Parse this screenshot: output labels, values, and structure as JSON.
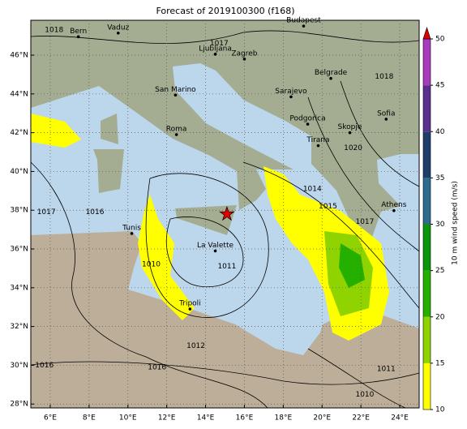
{
  "title": "Forecast of 2019100300 (f168)",
  "map": {
    "lonlim": [
      5,
      25
    ],
    "latlim": [
      27.8,
      47.8
    ],
    "lonticks": [
      {
        "value": 6,
        "label": "6°E"
      },
      {
        "value": 8,
        "label": "8°E"
      },
      {
        "value": 10,
        "label": "10°E"
      },
      {
        "value": 12,
        "label": "12°E"
      },
      {
        "value": 14,
        "label": "14°E"
      },
      {
        "value": 16,
        "label": "16°E"
      },
      {
        "value": 18,
        "label": "18°E"
      },
      {
        "value": 20,
        "label": "20°E"
      },
      {
        "value": 22,
        "label": "22°E"
      },
      {
        "value": 24,
        "label": "24°E"
      }
    ],
    "latticks": [
      {
        "value": 28,
        "label": "28°N"
      },
      {
        "value": 30,
        "label": "30°N"
      },
      {
        "value": 32,
        "label": "32°N"
      },
      {
        "value": 34,
        "label": "34°N"
      },
      {
        "value": 36,
        "label": "36°N"
      },
      {
        "value": 38,
        "label": "38°N"
      },
      {
        "value": 40,
        "label": "40°N"
      },
      {
        "value": 42,
        "label": "42°N"
      },
      {
        "value": 44,
        "label": "44°N"
      },
      {
        "value": 46,
        "label": "46°N"
      }
    ],
    "grid": true,
    "marker": {
      "lon": 15.1,
      "lat": 37.8,
      "color": "#e00000"
    },
    "cities": [
      {
        "name": "Budapest",
        "lon": 19.05,
        "lat": 47.5
      },
      {
        "name": "Vaduz",
        "lon": 9.5,
        "lat": 47.14
      },
      {
        "name": "Bern",
        "lon": 7.45,
        "lat": 46.95
      },
      {
        "name": "Ljubljana",
        "lon": 14.5,
        "lat": 46.05
      },
      {
        "name": "Zagreb",
        "lon": 16.0,
        "lat": 45.8
      },
      {
        "name": "Belgrade",
        "lon": 20.45,
        "lat": 44.8
      },
      {
        "name": "San Marino",
        "lon": 12.45,
        "lat": 43.94
      },
      {
        "name": "Sarajevo",
        "lon": 18.4,
        "lat": 43.85
      },
      {
        "name": "Roma",
        "lon": 12.5,
        "lat": 41.9
      },
      {
        "name": "Podgorica",
        "lon": 19.26,
        "lat": 42.44
      },
      {
        "name": "Skopje",
        "lon": 21.43,
        "lat": 42.0
      },
      {
        "name": "Sofia",
        "lon": 23.3,
        "lat": 42.7
      },
      {
        "name": "Tirana",
        "lon": 19.8,
        "lat": 41.33
      },
      {
        "name": "Athens",
        "lon": 23.7,
        "lat": 37.98
      },
      {
        "name": "Tunis",
        "lon": 10.2,
        "lat": 36.8
      },
      {
        "name": "La Valette",
        "lon": 14.5,
        "lat": 35.9
      },
      {
        "name": "Tripoli",
        "lon": 13.2,
        "lat": 32.9
      }
    ],
    "contour_labels": [
      {
        "value": 1018,
        "lon": 6.2,
        "lat": 47.3
      },
      {
        "value": 1017,
        "lon": 14.7,
        "lat": 46.6
      },
      {
        "value": 1018,
        "lon": 23.2,
        "lat": 44.9
      },
      {
        "value": 1017,
        "lon": 5.8,
        "lat": 37.9
      },
      {
        "value": 1016,
        "lon": 8.3,
        "lat": 37.9
      },
      {
        "value": 1014,
        "lon": 19.5,
        "lat": 39.1
      },
      {
        "value": 1015,
        "lon": 20.3,
        "lat": 38.2
      },
      {
        "value": 1017,
        "lon": 22.2,
        "lat": 37.4
      },
      {
        "value": 1020,
        "lon": 21.6,
        "lat": 41.2
      },
      {
        "value": 1010,
        "lon": 11.2,
        "lat": 35.2
      },
      {
        "value": 1011,
        "lon": 15.1,
        "lat": 35.1
      },
      {
        "value": 1012,
        "lon": 13.5,
        "lat": 31.0
      },
      {
        "value": 1016,
        "lon": 11.5,
        "lat": 29.9
      },
      {
        "value": 1016,
        "lon": 5.7,
        "lat": 30.0
      },
      {
        "value": 1011,
        "lon": 23.3,
        "lat": 29.8
      },
      {
        "value": 1010,
        "lon": 22.2,
        "lat": 28.5
      }
    ]
  },
  "colorbar": {
    "label": "10 m wind speed (m/s)",
    "lim": [
      10,
      50
    ],
    "ticks": [
      10,
      15,
      20,
      25,
      30,
      35,
      40,
      45,
      50
    ],
    "bounds": [
      10,
      15,
      20,
      25,
      30,
      35,
      40,
      45,
      50
    ],
    "colors": [
      "#ffff00",
      "#8fd400",
      "#25b000",
      "#0a960a",
      "#2f6b8e",
      "#1f3d6b",
      "#5b2f8f",
      "#a83cbc"
    ],
    "extend_color": "#e00000"
  }
}
